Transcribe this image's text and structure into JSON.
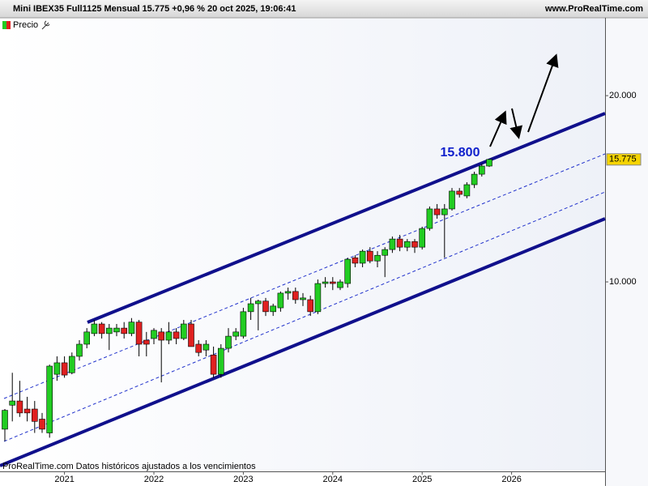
{
  "chart_data": {
    "type": "candlestick",
    "title": "Mini IBEX35 Full1125 Mensual 15.775 +0,96 % 20 oct 2025, 19:06:41",
    "source": "www.ProRealTime.com",
    "legend_label": "Precio",
    "footer": "ProRealTime.com Datos históricos ajustados a los vencimientos",
    "annotation": "15.800",
    "log_scale": true,
    "ylim": [
      4940,
      26720
    ],
    "yticks": [
      {
        "value": 10000,
        "label": "10.000"
      },
      {
        "value": 20000,
        "label": "20.000"
      }
    ],
    "up_color": "#22cc22",
    "down_color": "#e02020",
    "categories": [
      null,
      null,
      null,
      null,
      null,
      null,
      null,
      null,
      "2021",
      null,
      null,
      null,
      null,
      null,
      null,
      null,
      null,
      null,
      null,
      null,
      "2022",
      null,
      null,
      null,
      null,
      null,
      null,
      null,
      null,
      null,
      null,
      null,
      "2023",
      null,
      null,
      null,
      null,
      null,
      null,
      null,
      null,
      null,
      null,
      null,
      "2024",
      null,
      null,
      null,
      null,
      null,
      null,
      null,
      null,
      null,
      null,
      null,
      "2025",
      null,
      null,
      null,
      null,
      null,
      null,
      null,
      null,
      null,
      null,
      null,
      "2026"
    ],
    "open": [
      5780,
      6320,
      6420,
      6230,
      6230,
      6000,
      5700,
      7090,
      7400,
      7130,
      7580,
      7930,
      8250,
      8550,
      8250,
      8300,
      8420,
      8250,
      8610,
      8050,
      8100,
      8300,
      8050,
      8300,
      8100,
      8550,
      7930,
      7760,
      7620,
      7090,
      7810,
      8170,
      8170,
      8950,
      9220,
      9310,
      8950,
      9080,
      9590,
      9650,
      9360,
      9360,
      8950,
      9940,
      10000,
      9790,
      9940,
      10940,
      10720,
      11210,
      10810,
      11040,
      11280,
      11730,
      11380,
      11620,
      11380,
      12200,
      13120,
      12840,
      13120,
      14020,
      13770,
      14360,
      14930,
      15390,
      null,
      null,
      null
    ],
    "high": [
      6230,
      7130,
      6920,
      6520,
      6420,
      6140,
      7350,
      7580,
      7580,
      7690,
      8050,
      8420,
      8680,
      8610,
      8550,
      8550,
      8610,
      8740,
      8680,
      8300,
      8420,
      8420,
      8610,
      8420,
      8680,
      8680,
      8050,
      8050,
      7860,
      7930,
      8420,
      8420,
      9080,
      9420,
      9360,
      9420,
      9220,
      9650,
      9790,
      9790,
      9590,
      9500,
      10090,
      10180,
      10180,
      10090,
      10940,
      11040,
      11280,
      11380,
      11210,
      11380,
      11840,
      11910,
      11730,
      11730,
      12280,
      13240,
      13360,
      13360,
      14180,
      14180,
      14490,
      15070,
      15520,
      15810,
      null,
      null,
      null
    ],
    "low": [
      5530,
      5950,
      6050,
      5950,
      5700,
      5700,
      5600,
      6920,
      7000,
      7090,
      7460,
      7810,
      8170,
      8100,
      7760,
      8170,
      8100,
      8170,
      7580,
      7580,
      7930,
      6880,
      7930,
      7930,
      8050,
      7860,
      7580,
      7580,
      7000,
      7000,
      7690,
      8050,
      8100,
      8680,
      8350,
      8810,
      8810,
      8950,
      9360,
      9220,
      9140,
      8810,
      8870,
      9790,
      9700,
      9700,
      9790,
      10560,
      10560,
      10720,
      10560,
      10180,
      11140,
      11210,
      11210,
      11140,
      11280,
      12100,
      12650,
      10940,
      13040,
      13690,
      13650,
      14180,
      14800,
      15340,
      null,
      null,
      null
    ],
    "close": [
      6200,
      6420,
      6140,
      6140,
      5950,
      5780,
      7310,
      7400,
      7070,
      7580,
      7930,
      8300,
      8550,
      8250,
      8420,
      8420,
      8250,
      8610,
      7930,
      7930,
      8350,
      8050,
      8300,
      8100,
      8550,
      7860,
      7690,
      7930,
      7090,
      7810,
      8170,
      8300,
      8950,
      9220,
      9310,
      8950,
      9140,
      9590,
      9650,
      9360,
      9420,
      8950,
      9940,
      10000,
      9940,
      10000,
      10880,
      10720,
      11210,
      10810,
      11040,
      11280,
      11730,
      11380,
      11620,
      11380,
      12200,
      13120,
      12840,
      13120,
      14020,
      13850,
      14360,
      14930,
      15390,
      15775,
      null,
      null,
      null
    ],
    "price_marker": {
      "value": 15775,
      "label": "15.775"
    }
  }
}
